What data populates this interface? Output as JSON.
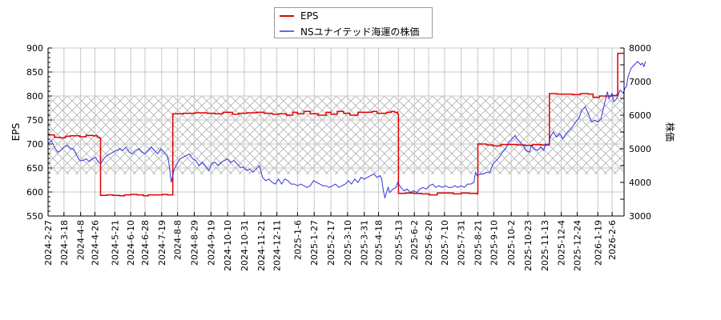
{
  "chart_data": {
    "type": "line",
    "title": "",
    "legend": {
      "position": "top-center",
      "entries": [
        {
          "name": "EPS",
          "color": "#e00000"
        },
        {
          "name": "NSユナイテッド海運の株価",
          "color": "#3333dd"
        }
      ]
    },
    "xlabel": "",
    "ylabel_left": "EPS",
    "ylabel_right": "株価",
    "ylim_left": [
      550,
      900
    ],
    "ylim_right": [
      3000,
      8000
    ],
    "yticks_left": [
      550,
      600,
      650,
      700,
      750,
      800,
      850,
      900
    ],
    "yticks_right": [
      3000,
      4000,
      5000,
      6000,
      7000,
      8000
    ],
    "x_tick_labels": [
      "2024-2-27",
      "2024-3-18",
      "2024-4-8",
      "2024-4-26",
      "2024-5-21",
      "2024-6-10",
      "2024-6-28",
      "2024-7-19",
      "2024-8-8",
      "2024-8-29",
      "2024-9-19",
      "2024-10-10",
      "2024-10-31",
      "2024-11-21",
      "2024-12-11",
      "2025-1-6",
      "2025-1-27",
      "2025-2-17",
      "2025-3-10",
      "2025-3-31",
      "2025-4-18",
      "2025-5-13",
      "2025-6-2",
      "2025-6-20",
      "2025-7-10",
      "2025-7-31",
      "2025-8-21",
      "2025-9-10",
      "2025-10-2",
      "2025-10-23",
      "2025-11-13",
      "2025-12-4",
      "2025-12-24",
      "2026-1-19",
      "2026-2-6"
    ],
    "grid": true,
    "shaded_band_eps": [
      637,
      799
    ],
    "series": [
      {
        "name": "EPS",
        "axis": "left",
        "color": "#e00000",
        "step": true,
        "points": [
          [
            0,
            719
          ],
          [
            8,
            714
          ],
          [
            15,
            713
          ],
          [
            22,
            716
          ],
          [
            28,
            717
          ],
          [
            36,
            717
          ],
          [
            40,
            715
          ],
          [
            48,
            718
          ],
          [
            56,
            717
          ],
          [
            62,
            714
          ],
          [
            65,
            712
          ],
          [
            66,
            593
          ],
          [
            74,
            594
          ],
          [
            82,
            593
          ],
          [
            90,
            592
          ],
          [
            96,
            594
          ],
          [
            104,
            595
          ],
          [
            112,
            594
          ],
          [
            120,
            592
          ],
          [
            126,
            594
          ],
          [
            134,
            594
          ],
          [
            144,
            595
          ],
          [
            150,
            594
          ],
          [
            156,
            594
          ],
          [
            157,
            763
          ],
          [
            170,
            764
          ],
          [
            185,
            765
          ],
          [
            200,
            764
          ],
          [
            210,
            763
          ],
          [
            220,
            766
          ],
          [
            232,
            762
          ],
          [
            240,
            764
          ],
          [
            250,
            765
          ],
          [
            262,
            766
          ],
          [
            272,
            764
          ],
          [
            282,
            762
          ],
          [
            290,
            763
          ],
          [
            300,
            760
          ],
          [
            308,
            766
          ],
          [
            314,
            763
          ],
          [
            322,
            768
          ],
          [
            330,
            763
          ],
          [
            340,
            760
          ],
          [
            350,
            766
          ],
          [
            356,
            762
          ],
          [
            364,
            768
          ],
          [
            372,
            764
          ],
          [
            380,
            760
          ],
          [
            390,
            766
          ],
          [
            400,
            766
          ],
          [
            408,
            768
          ],
          [
            414,
            764
          ],
          [
            420,
            764
          ],
          [
            426,
            766
          ],
          [
            432,
            768
          ],
          [
            436,
            766
          ],
          [
            440,
            762
          ],
          [
            441,
            597
          ],
          [
            450,
            598
          ],
          [
            460,
            597
          ],
          [
            470,
            596
          ],
          [
            480,
            594
          ],
          [
            490,
            598
          ],
          [
            500,
            598
          ],
          [
            510,
            596
          ],
          [
            520,
            598
          ],
          [
            530,
            597
          ],
          [
            540,
            596
          ],
          [
            541,
            700
          ],
          [
            552,
            698
          ],
          [
            560,
            696
          ],
          [
            570,
            699
          ],
          [
            580,
            699
          ],
          [
            590,
            698
          ],
          [
            600,
            697
          ],
          [
            610,
            699
          ],
          [
            620,
            698
          ],
          [
            630,
            699
          ],
          [
            631,
            805
          ],
          [
            640,
            804
          ],
          [
            650,
            804
          ],
          [
            660,
            803
          ],
          [
            670,
            805
          ],
          [
            680,
            804
          ],
          [
            686,
            797
          ],
          [
            694,
            800
          ],
          [
            702,
            800
          ],
          [
            710,
            801
          ],
          [
            716,
            803
          ],
          [
            717,
            889
          ],
          [
            725,
            889
          ]
        ]
      },
      {
        "name": "NSユナイテッド海運の株価",
        "axis": "right",
        "color": "#3333dd",
        "step": false,
        "points": [
          [
            0,
            5150
          ],
          [
            4,
            5250
          ],
          [
            8,
            5050
          ],
          [
            12,
            4900
          ],
          [
            16,
            4950
          ],
          [
            20,
            5050
          ],
          [
            24,
            5100
          ],
          [
            28,
            5000
          ],
          [
            32,
            5000
          ],
          [
            36,
            4800
          ],
          [
            40,
            4650
          ],
          [
            44,
            4650
          ],
          [
            48,
            4700
          ],
          [
            52,
            4620
          ],
          [
            56,
            4700
          ],
          [
            60,
            4750
          ],
          [
            62,
            4650
          ],
          [
            66,
            4550
          ],
          [
            70,
            4700
          ],
          [
            74,
            4800
          ],
          [
            78,
            4850
          ],
          [
            82,
            4900
          ],
          [
            86,
            4950
          ],
          [
            90,
            5000
          ],
          [
            94,
            4950
          ],
          [
            98,
            5050
          ],
          [
            102,
            4900
          ],
          [
            106,
            4850
          ],
          [
            110,
            4950
          ],
          [
            114,
            5000
          ],
          [
            118,
            4900
          ],
          [
            122,
            4850
          ],
          [
            126,
            4950
          ],
          [
            130,
            5050
          ],
          [
            134,
            4950
          ],
          [
            138,
            4850
          ],
          [
            142,
            5000
          ],
          [
            146,
            4900
          ],
          [
            150,
            4800
          ],
          [
            152,
            4600
          ],
          [
            155,
            4000
          ],
          [
            158,
            4350
          ],
          [
            162,
            4550
          ],
          [
            166,
            4700
          ],
          [
            170,
            4750
          ],
          [
            174,
            4800
          ],
          [
            178,
            4850
          ],
          [
            182,
            4700
          ],
          [
            186,
            4650
          ],
          [
            190,
            4500
          ],
          [
            194,
            4600
          ],
          [
            198,
            4500
          ],
          [
            202,
            4350
          ],
          [
            206,
            4550
          ],
          [
            210,
            4600
          ],
          [
            214,
            4500
          ],
          [
            218,
            4600
          ],
          [
            222,
            4650
          ],
          [
            226,
            4700
          ],
          [
            230,
            4600
          ],
          [
            234,
            4650
          ],
          [
            238,
            4550
          ],
          [
            242,
            4450
          ],
          [
            246,
            4450
          ],
          [
            250,
            4350
          ],
          [
            254,
            4400
          ],
          [
            258,
            4300
          ],
          [
            262,
            4400
          ],
          [
            266,
            4500
          ],
          [
            270,
            4150
          ],
          [
            274,
            4050
          ],
          [
            278,
            4100
          ],
          [
            282,
            4000
          ],
          [
            286,
            3950
          ],
          [
            290,
            4100
          ],
          [
            294,
            3950
          ],
          [
            298,
            4100
          ],
          [
            302,
            4050
          ],
          [
            306,
            3950
          ],
          [
            310,
            3950
          ],
          [
            314,
            3900
          ],
          [
            318,
            3950
          ],
          [
            322,
            3900
          ],
          [
            326,
            3850
          ],
          [
            330,
            3900
          ],
          [
            334,
            4050
          ],
          [
            338,
            4000
          ],
          [
            342,
            3950
          ],
          [
            346,
            3900
          ],
          [
            350,
            3900
          ],
          [
            354,
            3850
          ],
          [
            358,
            3900
          ],
          [
            362,
            3950
          ],
          [
            366,
            3850
          ],
          [
            370,
            3900
          ],
          [
            374,
            3950
          ],
          [
            378,
            4050
          ],
          [
            382,
            3950
          ],
          [
            386,
            4100
          ],
          [
            390,
            4000
          ],
          [
            394,
            4150
          ],
          [
            398,
            4100
          ],
          [
            402,
            4150
          ],
          [
            406,
            4200
          ],
          [
            410,
            4250
          ],
          [
            414,
            4150
          ],
          [
            418,
            4200
          ],
          [
            420,
            4100
          ],
          [
            422,
            3750
          ],
          [
            424,
            3550
          ],
          [
            426,
            3700
          ],
          [
            428,
            3850
          ],
          [
            430,
            3700
          ],
          [
            434,
            3800
          ],
          [
            438,
            3850
          ],
          [
            440,
            4000
          ],
          [
            444,
            3850
          ],
          [
            448,
            3750
          ],
          [
            452,
            3800
          ],
          [
            456,
            3700
          ],
          [
            460,
            3750
          ],
          [
            464,
            3700
          ],
          [
            468,
            3800
          ],
          [
            472,
            3850
          ],
          [
            476,
            3800
          ],
          [
            480,
            3900
          ],
          [
            484,
            3950
          ],
          [
            488,
            3850
          ],
          [
            492,
            3900
          ],
          [
            496,
            3850
          ],
          [
            500,
            3900
          ],
          [
            504,
            3850
          ],
          [
            508,
            3850
          ],
          [
            512,
            3900
          ],
          [
            516,
            3850
          ],
          [
            520,
            3900
          ],
          [
            524,
            3850
          ],
          [
            528,
            3950
          ],
          [
            532,
            3950
          ],
          [
            536,
            4000
          ],
          [
            538,
            4300
          ],
          [
            540,
            4200
          ],
          [
            544,
            4250
          ],
          [
            548,
            4250
          ],
          [
            552,
            4300
          ],
          [
            556,
            4300
          ],
          [
            560,
            4550
          ],
          [
            564,
            4650
          ],
          [
            568,
            4750
          ],
          [
            572,
            4900
          ],
          [
            576,
            5000
          ],
          [
            580,
            5200
          ],
          [
            584,
            5300
          ],
          [
            588,
            5400
          ],
          [
            590,
            5300
          ],
          [
            594,
            5200
          ],
          [
            598,
            5100
          ],
          [
            602,
            4950
          ],
          [
            606,
            4900
          ],
          [
            608,
            5100
          ],
          [
            612,
            5000
          ],
          [
            616,
            4950
          ],
          [
            620,
            5050
          ],
          [
            624,
            4950
          ],
          [
            626,
            5150
          ],
          [
            630,
            5100
          ],
          [
            632,
            5350
          ],
          [
            636,
            5500
          ],
          [
            640,
            5350
          ],
          [
            644,
            5450
          ],
          [
            648,
            5300
          ],
          [
            652,
            5450
          ],
          [
            656,
            5550
          ],
          [
            660,
            5650
          ],
          [
            664,
            5800
          ],
          [
            668,
            5900
          ],
          [
            672,
            6150
          ],
          [
            676,
            6250
          ],
          [
            680,
            6050
          ],
          [
            684,
            5800
          ],
          [
            688,
            5850
          ],
          [
            692,
            5800
          ],
          [
            696,
            5900
          ],
          [
            700,
            6300
          ],
          [
            704,
            6700
          ],
          [
            706,
            6500
          ],
          [
            710,
            6650
          ],
          [
            712,
            6400
          ],
          [
            716,
            6500
          ],
          [
            720,
            6750
          ],
          [
            724,
            6650
          ],
          [
            726,
            6800
          ],
          [
            728,
            6850
          ],
          [
            730,
            7150
          ],
          [
            734,
            7400
          ],
          [
            738,
            7500
          ],
          [
            742,
            7600
          ],
          [
            746,
            7500
          ],
          [
            748,
            7550
          ],
          [
            750,
            7450
          ],
          [
            752,
            7600
          ]
        ]
      }
    ]
  }
}
